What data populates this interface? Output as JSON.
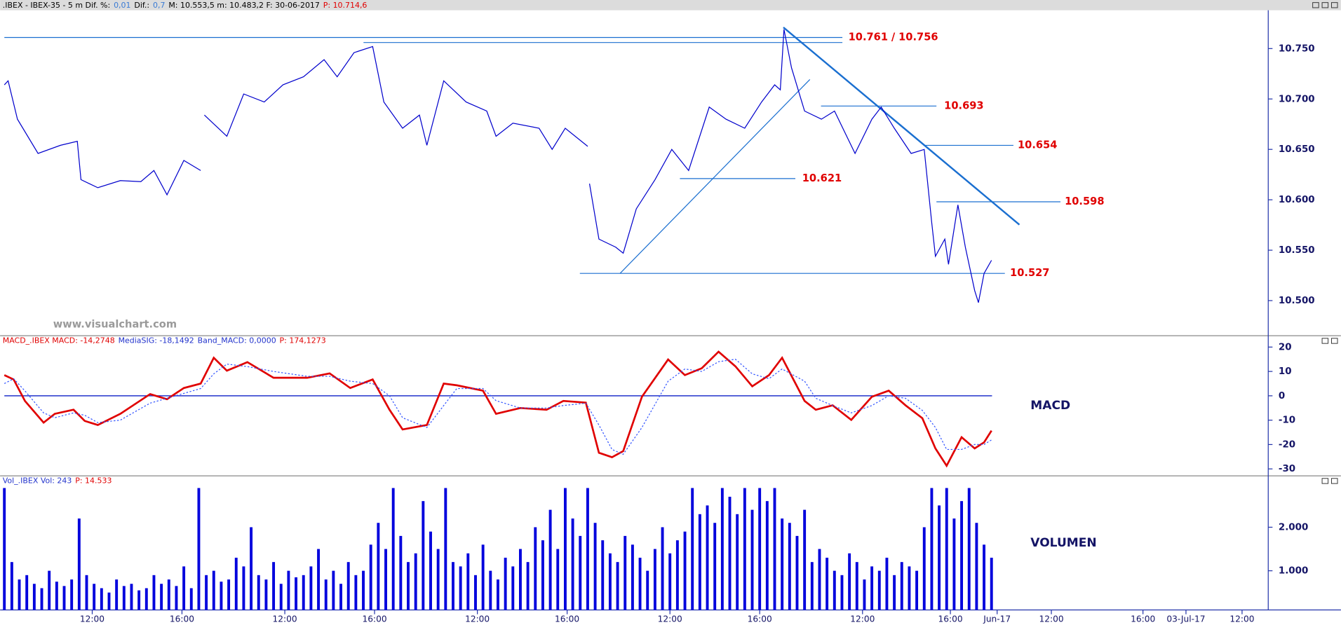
{
  "header": {
    "parts": [
      ".IBEX - IBEX-35 -  5 m  Dif. %:",
      "0,01",
      "Dif.:",
      "0,7",
      "M: 10.553,5  m: 10.483,2  F: 30-06-2017",
      "P: 10.714,6"
    ]
  },
  "chart_data": [
    {
      "type": "line",
      "watermark": "www.visualchart.com",
      "x": [
        0,
        2,
        7,
        18,
        30,
        39,
        41,
        50,
        62,
        73,
        80,
        87,
        96,
        105,
        106,
        107,
        119,
        128,
        139,
        149,
        160,
        171,
        178,
        187,
        197,
        203,
        213,
        222,
        226,
        235,
        247,
        258,
        263,
        272,
        286,
        293,
        300,
        312,
        312.5,
        313,
        318,
        327,
        331,
        338,
        348,
        357,
        366,
        377,
        386,
        396,
        405,
        412,
        415,
        417,
        421,
        428,
        437,
        444,
        455,
        464,
        469,
        476,
        485,
        492,
        496,
        498,
        503,
        505,
        510,
        514,
        519,
        521,
        524,
        528
      ],
      "series": [
        {
          "name": "IBEX-35",
          "color": "#0000cc",
          "values": [
            10.714,
            10.718,
            10.68,
            10.646,
            10.654,
            10.658,
            10.62,
            10.612,
            10.619,
            10.618,
            10.629,
            10.605,
            10.639,
            10.629,
            null,
            10.684,
            10.663,
            10.705,
            10.697,
            10.714,
            10.722,
            10.739,
            10.722,
            10.746,
            10.752,
            10.697,
            10.671,
            10.684,
            10.654,
            10.718,
            10.697,
            10.688,
            10.663,
            10.676,
            10.671,
            10.65,
            10.671,
            10.653,
            null,
            10.616,
            10.561,
            10.553,
            10.547,
            10.591,
            10.62,
            10.65,
            10.629,
            10.692,
            10.68,
            10.671,
            10.697,
            10.714,
            10.709,
            10.769,
            10.731,
            10.688,
            10.68,
            10.688,
            10.646,
            10.68,
            10.692,
            10.671,
            10.646,
            10.65,
            10.578,
            10.544,
            10.561,
            10.536,
            10.595,
            10.553,
            10.51,
            10.498,
            10.527,
            10.54
          ]
        }
      ],
      "levels": [
        {
          "value": 10.761,
          "label": "10.761"
        },
        {
          "value": 10.756,
          "label": "10.756"
        },
        {
          "value": 10.693,
          "label": "10.693"
        },
        {
          "value": 10.654,
          "label": "10.654"
        },
        {
          "value": 10.621,
          "label": "10.621"
        },
        {
          "value": 10.598,
          "label": "10.598"
        },
        {
          "value": 10.527,
          "label": "10.527"
        }
      ],
      "level_separator": "/",
      "level_color": "#e00000",
      "xlim": [
        0,
        676
      ],
      "ylim": [
        10.466,
        10.788
      ],
      "yticks": [
        {
          "value": 10.5,
          "label": "10.500"
        },
        {
          "value": 10.55,
          "label": "10.550"
        },
        {
          "value": 10.6,
          "label": "10.600"
        },
        {
          "value": 10.65,
          "label": "10.650"
        },
        {
          "value": 10.7,
          "label": "10.700"
        },
        {
          "value": 10.75,
          "label": "10.750"
        }
      ],
      "grid": false
    },
    {
      "type": "line",
      "header": [
        "MACD_.IBEX MACD: -14,2748",
        "MediaSIG: -18,1492",
        "Band_MACD: 0,0000",
        "P: 174,1273"
      ],
      "annotation": "MACD",
      "x": [
        0,
        5,
        11,
        21,
        27,
        37,
        43,
        50,
        62,
        78,
        87,
        96,
        105,
        112,
        119,
        130,
        144,
        162,
        174,
        185,
        197,
        206,
        213,
        226,
        235,
        242,
        256,
        263,
        276,
        290,
        299,
        311,
        318,
        325,
        331,
        341,
        355,
        364,
        373,
        382,
        391,
        400,
        409,
        416,
        428,
        434,
        443,
        453,
        464,
        473,
        482,
        491,
        498,
        504,
        512,
        519,
        524,
        528
      ],
      "series": [
        {
          "name": "MACD",
          "color": "#e00000",
          "values": [
            8.5,
            6.7,
            -2.1,
            -11,
            -7.4,
            -5.7,
            -10.3,
            -12,
            -7.4,
            0.7,
            -1.4,
            3.2,
            5,
            15.6,
            10.3,
            13.8,
            7.4,
            7.4,
            9.2,
            3.2,
            6.7,
            -5.7,
            -13.8,
            -12,
            5,
            4.3,
            2.1,
            -7.4,
            -5,
            -5.7,
            -2.1,
            -2.8,
            -23.4,
            -25.2,
            -22.7,
            -0.4,
            14.9,
            8.5,
            11.3,
            18.1,
            12.1,
            3.9,
            8.5,
            15.6,
            -2.1,
            -5.7,
            -3.9,
            -9.9,
            -0.4,
            2.1,
            -3.9,
            -9.2,
            -21.6,
            -28.7,
            -17,
            -21.6,
            -19.1,
            -14.3
          ]
        },
        {
          "name": "MediaSIG",
          "color": "#3355ff",
          "values": [
            5,
            7,
            2,
            -7,
            -9,
            -7,
            -8,
            -11,
            -10,
            -3,
            -1,
            1,
            3,
            9,
            13,
            12,
            10,
            8,
            8,
            6,
            5,
            0,
            -9,
            -13,
            -4,
            3,
            3,
            -2,
            -5,
            -5,
            -4,
            -3,
            -12,
            -22,
            -24,
            -13,
            6,
            11,
            10,
            14,
            15,
            9,
            7,
            11,
            6,
            -1,
            -4,
            -7,
            -4,
            0,
            -1,
            -6,
            -13,
            -22,
            -22,
            -20,
            -20,
            -18.1
          ]
        }
      ],
      "band": 0,
      "band_color": "#2233cc",
      "xlim": [
        0,
        676
      ],
      "ylim": [
        -32.5,
        24.3
      ],
      "yticks": [
        -30,
        -20,
        -10,
        0,
        10,
        20
      ],
      "grid": false
    },
    {
      "type": "bar",
      "header": [
        "Vol_.IBEX Vol: 243",
        "P: 14.533"
      ],
      "annotation": "VOLUMEN",
      "color": "#0000dd",
      "x": [
        0,
        4,
        8,
        12,
        16,
        20,
        24,
        28,
        32,
        36,
        40,
        44,
        48,
        52,
        56,
        60,
        64,
        68,
        72,
        76,
        80,
        84,
        88,
        92,
        96,
        100,
        104,
        108,
        112,
        116,
        120,
        124,
        128,
        132,
        136,
        140,
        144,
        148,
        152,
        156,
        160,
        164,
        168,
        172,
        176,
        180,
        184,
        188,
        192,
        196,
        200,
        204,
        208,
        212,
        216,
        220,
        224,
        228,
        232,
        236,
        240,
        244,
        248,
        252,
        256,
        260,
        264,
        268,
        272,
        276,
        280,
        284,
        288,
        292,
        296,
        300,
        304,
        308,
        312,
        316,
        320,
        324,
        328,
        332,
        336,
        340,
        344,
        348,
        352,
        356,
        360,
        364,
        368,
        372,
        376,
        380,
        384,
        388,
        392,
        396,
        400,
        404,
        408,
        412,
        416,
        420,
        424,
        428,
        432,
        436,
        440,
        444,
        448,
        452,
        456,
        460,
        464,
        468,
        472,
        476,
        480,
        484,
        488,
        492,
        496,
        500,
        504,
        508,
        512,
        516,
        520,
        524,
        528
      ],
      "values": [
        2900,
        1200,
        800,
        900,
        700,
        600,
        1000,
        750,
        650,
        800,
        2200,
        900,
        700,
        600,
        500,
        800,
        650,
        700,
        550,
        600,
        900,
        700,
        800,
        650,
        1100,
        600,
        2900,
        900,
        1000,
        750,
        800,
        1300,
        1100,
        2000,
        900,
        800,
        1200,
        700,
        1000,
        850,
        900,
        1100,
        1500,
        800,
        1000,
        700,
        1200,
        900,
        1000,
        1600,
        2100,
        1500,
        2900,
        1800,
        1200,
        1400,
        2600,
        1900,
        1500,
        2900,
        1200,
        1100,
        1400,
        900,
        1600,
        1000,
        800,
        1300,
        1100,
        1500,
        1200,
        2000,
        1700,
        2400,
        1500,
        2900,
        2200,
        1800,
        2900,
        2100,
        1700,
        1400,
        1200,
        1800,
        1600,
        1300,
        1000,
        1500,
        2000,
        1400,
        1700,
        1900,
        2900,
        2300,
        2500,
        2100,
        2900,
        2700,
        2300,
        2900,
        2400,
        2900,
        2600,
        2900,
        2200,
        2100,
        1800,
        2400,
        1200,
        1500,
        1300,
        1000,
        900,
        1400,
        1200,
        800,
        1100,
        1000,
        1300,
        900,
        1200,
        1100,
        1000,
        2000,
        2900,
        2500,
        2900,
        2200,
        2600,
        2900,
        2100,
        1600,
        1300
      ],
      "xlim": [
        0,
        676
      ],
      "ylim": [
        100,
        3180
      ],
      "yticks": [
        {
          "value": 1000,
          "label": "1.000"
        },
        {
          "value": 2000,
          "label": "2.000"
        }
      ],
      "xticks": [
        {
          "value": 47,
          "label": "12:00"
        },
        {
          "value": 95,
          "label": "16:00"
        },
        {
          "value": 150,
          "label": "12:00"
        },
        {
          "value": 198,
          "label": "16:00"
        },
        {
          "value": 253,
          "label": "12:00"
        },
        {
          "value": 301,
          "label": "16:00"
        },
        {
          "value": 356,
          "label": "12:00"
        },
        {
          "value": 404,
          "label": "16:00"
        },
        {
          "value": 459,
          "label": "12:00"
        },
        {
          "value": 506,
          "label": "16:00"
        },
        {
          "value": 531,
          "label": "Jun-17"
        },
        {
          "value": 560,
          "label": "12:00"
        },
        {
          "value": 609,
          "label": "16:00"
        },
        {
          "value": 632,
          "label": "03-Jul-17"
        },
        {
          "value": 662,
          "label": "12:00"
        }
      ],
      "grid": false
    }
  ]
}
